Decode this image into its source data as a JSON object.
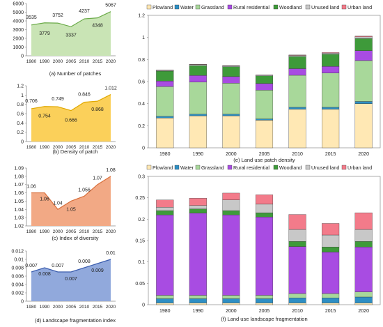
{
  "chart_data": [
    {
      "id": "a",
      "type": "area",
      "caption": "(a) Number of patches",
      "categories": [
        "1980",
        "1990",
        "2000",
        "2005",
        "2010",
        "2015",
        "2020"
      ],
      "values": [
        3535,
        3779,
        3752,
        3337,
        4237,
        4348,
        5067
      ],
      "value_labels": [
        "3535",
        "3779",
        "3752",
        "3337",
        "4237",
        "4348",
        "5067"
      ],
      "ylim": [
        0,
        6000
      ],
      "yticks": [
        0,
        1000,
        2000,
        3000,
        4000,
        5000,
        6000
      ],
      "ytick_labels": [
        "0",
        "1000",
        "2000",
        "3000",
        "4000",
        "5000",
        "6000"
      ],
      "fill": "#c9e4b5",
      "stroke": "#6aaa48",
      "grid": false
    },
    {
      "id": "b",
      "type": "area",
      "caption": "(b)  Density of patch",
      "categories": [
        "1980",
        "1990",
        "2000",
        "2005",
        "2010",
        "2015",
        "2020"
      ],
      "values": [
        0.706,
        0.754,
        0.749,
        0.666,
        0.846,
        0.868,
        1.012
      ],
      "value_labels": [
        "0.706",
        "0.754",
        "0.749",
        "0.666",
        "0.846",
        "0.868",
        "1.012"
      ],
      "ylim": [
        0,
        1.2
      ],
      "yticks": [
        0,
        0.2,
        0.4,
        0.6,
        0.8,
        1.0,
        1.2
      ],
      "ytick_labels": [
        "0",
        "0.2",
        "0.4",
        "0.6",
        "0.8",
        "1",
        "1.2"
      ],
      "fill": "#fbd05a",
      "stroke": "#e0a800",
      "grid": false
    },
    {
      "id": "c",
      "type": "area",
      "caption": "(c) Index of diversity",
      "categories": [
        "1980",
        "1990",
        "2000",
        "2005",
        "2010",
        "2015",
        "2020"
      ],
      "values": [
        1.06,
        1.06,
        1.04,
        1.05,
        1.056,
        1.07,
        1.08
      ],
      "value_labels": [
        "1.06",
        "1.06",
        "1.04",
        "1.05",
        "1.056",
        "1.07",
        "1.08"
      ],
      "ylim": [
        1.02,
        1.09
      ],
      "yticks": [
        1.02,
        1.03,
        1.04,
        1.05,
        1.06,
        1.07,
        1.08,
        1.09
      ],
      "ytick_labels": [
        "1.02",
        "1.03",
        "1.04",
        "1.05",
        "1.06",
        "1.07",
        "1.08",
        "1.09"
      ],
      "fill": "#f2a985",
      "stroke": "#d9703d",
      "grid": false
    },
    {
      "id": "d",
      "type": "area",
      "caption": "(d) Landscape fragmentation index",
      "categories": [
        "1980",
        "1990",
        "2000",
        "2005",
        "2010",
        "2015",
        "2020"
      ],
      "values": [
        0.007,
        0.008,
        0.007,
        0.007,
        0.008,
        0.009,
        0.01
      ],
      "value_labels": [
        "0.007",
        "0.008",
        "0.007",
        "0.007",
        "0.008",
        "0.009",
        "0.01"
      ],
      "ylim": [
        0,
        0.012
      ],
      "yticks": [
        0,
        0.002,
        0.004,
        0.006,
        0.008,
        0.01,
        0.012
      ],
      "ytick_labels": [
        "0",
        "0.002",
        "0.004",
        "0.006",
        "0.008",
        "0.01",
        "0.012"
      ],
      "fill": "#91a9dc",
      "stroke": "#3c5eae",
      "grid": false
    },
    {
      "id": "e",
      "type": "bar",
      "stacked": true,
      "caption": "(e) Land use patch density",
      "categories": [
        "1980",
        "1990",
        "2000",
        "2005",
        "2010",
        "2015",
        "2020"
      ],
      "ylim": [
        0,
        1.2
      ],
      "yticks": [
        0,
        0.2,
        0.4,
        0.6,
        0.8,
        1.0,
        1.2
      ],
      "ytick_labels": [
        "0",
        "0.2",
        "0.4",
        "0.6",
        "0.8",
        "1",
        "1.2"
      ],
      "legend": "top",
      "grid": false,
      "series": [
        {
          "name": "Plowland",
          "color": "#ffe8b4",
          "values": [
            0.27,
            0.29,
            0.29,
            0.25,
            0.35,
            0.35,
            0.4
          ]
        },
        {
          "name": "Water",
          "color": "#2e8fc4",
          "values": [
            0.015,
            0.015,
            0.015,
            0.012,
            0.017,
            0.017,
            0.02
          ]
        },
        {
          "name": "Grassland",
          "color": "#a8d89a",
          "values": [
            0.27,
            0.29,
            0.28,
            0.26,
            0.29,
            0.31,
            0.37
          ]
        },
        {
          "name": "Rural residential",
          "color": "#a84ce2",
          "values": [
            0.05,
            0.06,
            0.06,
            0.06,
            0.06,
            0.06,
            0.09
          ]
        },
        {
          "name": "Woodland",
          "color": "#3e9a3a",
          "values": [
            0.09,
            0.09,
            0.09,
            0.07,
            0.11,
            0.11,
            0.11
          ]
        },
        {
          "name": "Unused land",
          "color": "#c8c8c8",
          "values": [
            0.008,
            0.008,
            0.008,
            0.006,
            0.01,
            0.01,
            0.015
          ]
        },
        {
          "name": "Urban land",
          "color": "#f37b8a",
          "values": [
            0.003,
            0.003,
            0.003,
            0.002,
            0.004,
            0.006,
            0.007
          ]
        }
      ]
    },
    {
      "id": "f",
      "type": "bar",
      "stacked": true,
      "caption": "(f) Land use landscape fragmentation",
      "categories": [
        "1980",
        "1990",
        "2000",
        "2005",
        "2010",
        "2015",
        "2020"
      ],
      "ylim": [
        0,
        0.3
      ],
      "yticks": [
        0,
        0.05,
        0.1,
        0.15,
        0.2,
        0.25,
        0.3
      ],
      "ytick_labels": [
        "0",
        "0.05",
        "0.1",
        "0.15",
        "0.2",
        "0.25",
        "0.3"
      ],
      "legend": "top",
      "grid": false,
      "series": [
        {
          "name": "Plowland",
          "color": "#ffe8b4",
          "values": [
            0.004,
            0.004,
            0.004,
            0.004,
            0.004,
            0.004,
            0.004
          ]
        },
        {
          "name": "Water",
          "color": "#2e8fc4",
          "values": [
            0.01,
            0.01,
            0.01,
            0.01,
            0.012,
            0.012,
            0.014
          ]
        },
        {
          "name": "Grassland",
          "color": "#a8d89a",
          "values": [
            0.008,
            0.008,
            0.008,
            0.008,
            0.01,
            0.01,
            0.012
          ]
        },
        {
          "name": "Rural residential",
          "color": "#a84ce2",
          "values": [
            0.188,
            0.192,
            0.188,
            0.183,
            0.11,
            0.097,
            0.105
          ]
        },
        {
          "name": "Woodland",
          "color": "#3e9a3a",
          "values": [
            0.01,
            0.01,
            0.01,
            0.01,
            0.012,
            0.012,
            0.013
          ]
        },
        {
          "name": "Unused land",
          "color": "#c8c8c8",
          "values": [
            0.008,
            0.008,
            0.025,
            0.02,
            0.028,
            0.028,
            0.028
          ]
        },
        {
          "name": "Urban land",
          "color": "#f37b8a",
          "values": [
            0.017,
            0.017,
            0.016,
            0.022,
            0.035,
            0.027,
            0.039
          ]
        }
      ]
    }
  ]
}
